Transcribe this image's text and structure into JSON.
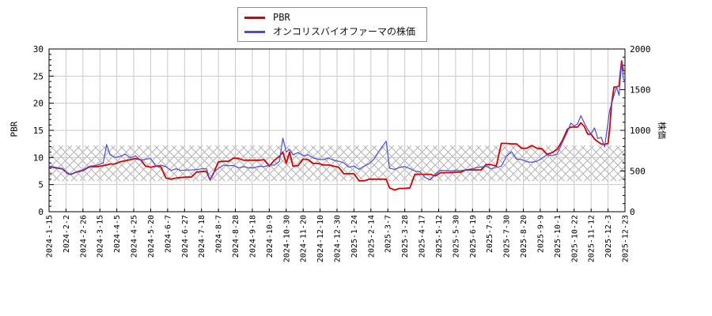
{
  "legend": {
    "items": [
      {
        "label": "PBR",
        "color": "#d40000"
      },
      {
        "label": "オンコリスバイオファーマの株価",
        "color": "#4a4cd4"
      }
    ]
  },
  "chart_data": {
    "type": "line",
    "title": "",
    "left_axis": {
      "label": "PBR",
      "min": 0,
      "max": 30,
      "ticks": [
        0,
        5,
        10,
        15,
        20,
        25,
        30
      ],
      "minor_step": 1
    },
    "right_axis": {
      "label": "株価",
      "min": 0,
      "max": 2000,
      "ticks": [
        0,
        500,
        1000,
        1500,
        2000
      ],
      "minor_step": 100
    },
    "x_ticks": [
      "2024-1-15",
      "2024-2-2",
      "2024-2-26",
      "2024-3-15",
      "2024-4-5",
      "2024-4-25",
      "2024-5-20",
      "2024-6-7",
      "2024-6-27",
      "2024-7-18",
      "2024-8-7",
      "2024-8-28",
      "2024-9-18",
      "2024-10-9",
      "2024-10-30",
      "2024-11-20",
      "2024-12-10",
      "2024-12-30",
      "2025-1-24",
      "2025-2-14",
      "2025-3-7",
      "2025-3-28",
      "2025-4-17",
      "2025-5-12",
      "2025-5-30",
      "2025-6-19",
      "2025-7-9",
      "2025-7-30",
      "2025-8-20",
      "2025-9-9",
      "2025-10-1",
      "2025-10-22",
      "2025-11-12",
      "2025-12-3",
      "2025-12-23"
    ],
    "band": {
      "name": "valuation-band",
      "lower_pbr": 5.65,
      "upper_pbr": 12.2,
      "style": "crosshatch",
      "color": "#b2b2b2"
    },
    "grid": {
      "on": true,
      "color": "#c9c9c9"
    },
    "legend_position": "top-center",
    "x_unit": "tick-index (0 = 2024-1-15, 34 = 2025-12-23)",
    "x": [
      0,
      0.4,
      0.8,
      1.1,
      1.3,
      1.6,
      2,
      2.4,
      2.8,
      3.2,
      3.4,
      3.6,
      3.9,
      4.2,
      4.5,
      4.8,
      5.1,
      5.4,
      5.7,
      6,
      6.3,
      6.6,
      6.9,
      7.2,
      7.5,
      7.8,
      8.1,
      8.4,
      8.7,
      9,
      9.3,
      9.5,
      9.7,
      10,
      10.3,
      10.6,
      10.9,
      11.2,
      11.5,
      11.8,
      12.1,
      12.4,
      12.7,
      13,
      13.3,
      13.6,
      13.8,
      14,
      14.2,
      14.4,
      14.7,
      15,
      15.3,
      15.6,
      15.9,
      16.2,
      16.5,
      16.8,
      17.1,
      17.4,
      17.7,
      18,
      18.3,
      18.6,
      18.9,
      19.2,
      19.5,
      19.9,
      20.1,
      20.4,
      20.7,
      21,
      21.3,
      21.6,
      21.9,
      22.2,
      22.5,
      22.8,
      23.1,
      23.4,
      23.7,
      24,
      24.3,
      24.6,
      24.9,
      25.2,
      25.5,
      25.8,
      26.1,
      26.4,
      26.7,
      27,
      27.3,
      27.6,
      27.9,
      28.2,
      28.5,
      28.8,
      29.1,
      29.4,
      29.7,
      30,
      30.3,
      30.6,
      30.8,
      31,
      31.2,
      31.4,
      31.6,
      31.8,
      32,
      32.2,
      32.4,
      32.6,
      32.8,
      33,
      33.1,
      33.2,
      33.35,
      33.5,
      33.65,
      33.8,
      33.9,
      34
    ],
    "series": [
      {
        "name": "PBR",
        "axis": "left",
        "color": "#d40000",
        "width": 1.8,
        "values": [
          8.3,
          8.1,
          7.9,
          7.0,
          6.9,
          7.3,
          7.6,
          8.3,
          8.3,
          8.5,
          8.6,
          8.8,
          8.8,
          9.2,
          9.4,
          9.6,
          9.8,
          9.6,
          8.4,
          8.2,
          8.4,
          8.3,
          6.2,
          6.0,
          6.2,
          6.3,
          6.4,
          6.4,
          7.3,
          7.4,
          7.4,
          5.9,
          7.0,
          9.2,
          9.3,
          9.3,
          9.9,
          9.8,
          9.5,
          9.5,
          9.5,
          9.5,
          9.6,
          8.4,
          9.5,
          10.2,
          11.0,
          8.9,
          11.0,
          8.4,
          8.5,
          9.7,
          9.6,
          8.9,
          8.9,
          8.6,
          8.6,
          8.4,
          8.2,
          7.0,
          7.0,
          7.0,
          5.7,
          5.7,
          6.0,
          6.0,
          6.0,
          6.0,
          4.4,
          4.0,
          4.3,
          4.3,
          4.4,
          6.9,
          6.9,
          6.9,
          6.9,
          6.6,
          7.2,
          7.2,
          7.2,
          7.3,
          7.3,
          7.7,
          7.7,
          7.7,
          7.7,
          8.7,
          8.7,
          8.4,
          12.6,
          12.6,
          12.5,
          12.5,
          11.7,
          11.7,
          12.2,
          11.7,
          11.6,
          10.6,
          10.9,
          11.5,
          13.1,
          15.2,
          15.6,
          15.6,
          15.6,
          16.4,
          15.7,
          14.3,
          14.3,
          13.4,
          12.9,
          12.5,
          12.4,
          12.6,
          15.3,
          19.7,
          23.0,
          23.0,
          23.2,
          27.8,
          26.0,
          26.0
        ]
      },
      {
        "name": "オンコリスバイオファーマの株価",
        "axis": "right",
        "color": "#4a4cd4",
        "width": 1.2,
        "values": [
          560,
          545,
          530,
          470,
          455,
          490,
          515,
          560,
          570,
          600,
          825,
          700,
          667,
          680,
          707,
          660,
          687,
          633,
          647,
          653,
          560,
          573,
          553,
          507,
          527,
          507,
          513,
          513,
          517,
          527,
          527,
          387,
          480,
          533,
          573,
          567,
          567,
          540,
          553,
          540,
          540,
          560,
          553,
          573,
          573,
          620,
          905,
          733,
          767,
          700,
          727,
          687,
          700,
          660,
          647,
          640,
          660,
          633,
          620,
          600,
          547,
          560,
          520,
          560,
          590,
          650,
          750,
          867,
          535,
          520,
          545,
          555,
          530,
          500,
          490,
          420,
          390,
          460,
          510,
          505,
          500,
          510,
          505,
          515,
          525,
          540,
          550,
          560,
          527,
          545,
          560,
          680,
          738,
          650,
          640,
          615,
          608,
          620,
          657,
          700,
          688,
          710,
          850,
          980,
          1090,
          1050,
          1080,
          1180,
          1090,
          1010,
          955,
          1030,
          900,
          915,
          795,
          1100,
          1250,
          1320,
          1430,
          1535,
          1430,
          1830,
          1635,
          1600
        ]
      }
    ]
  }
}
